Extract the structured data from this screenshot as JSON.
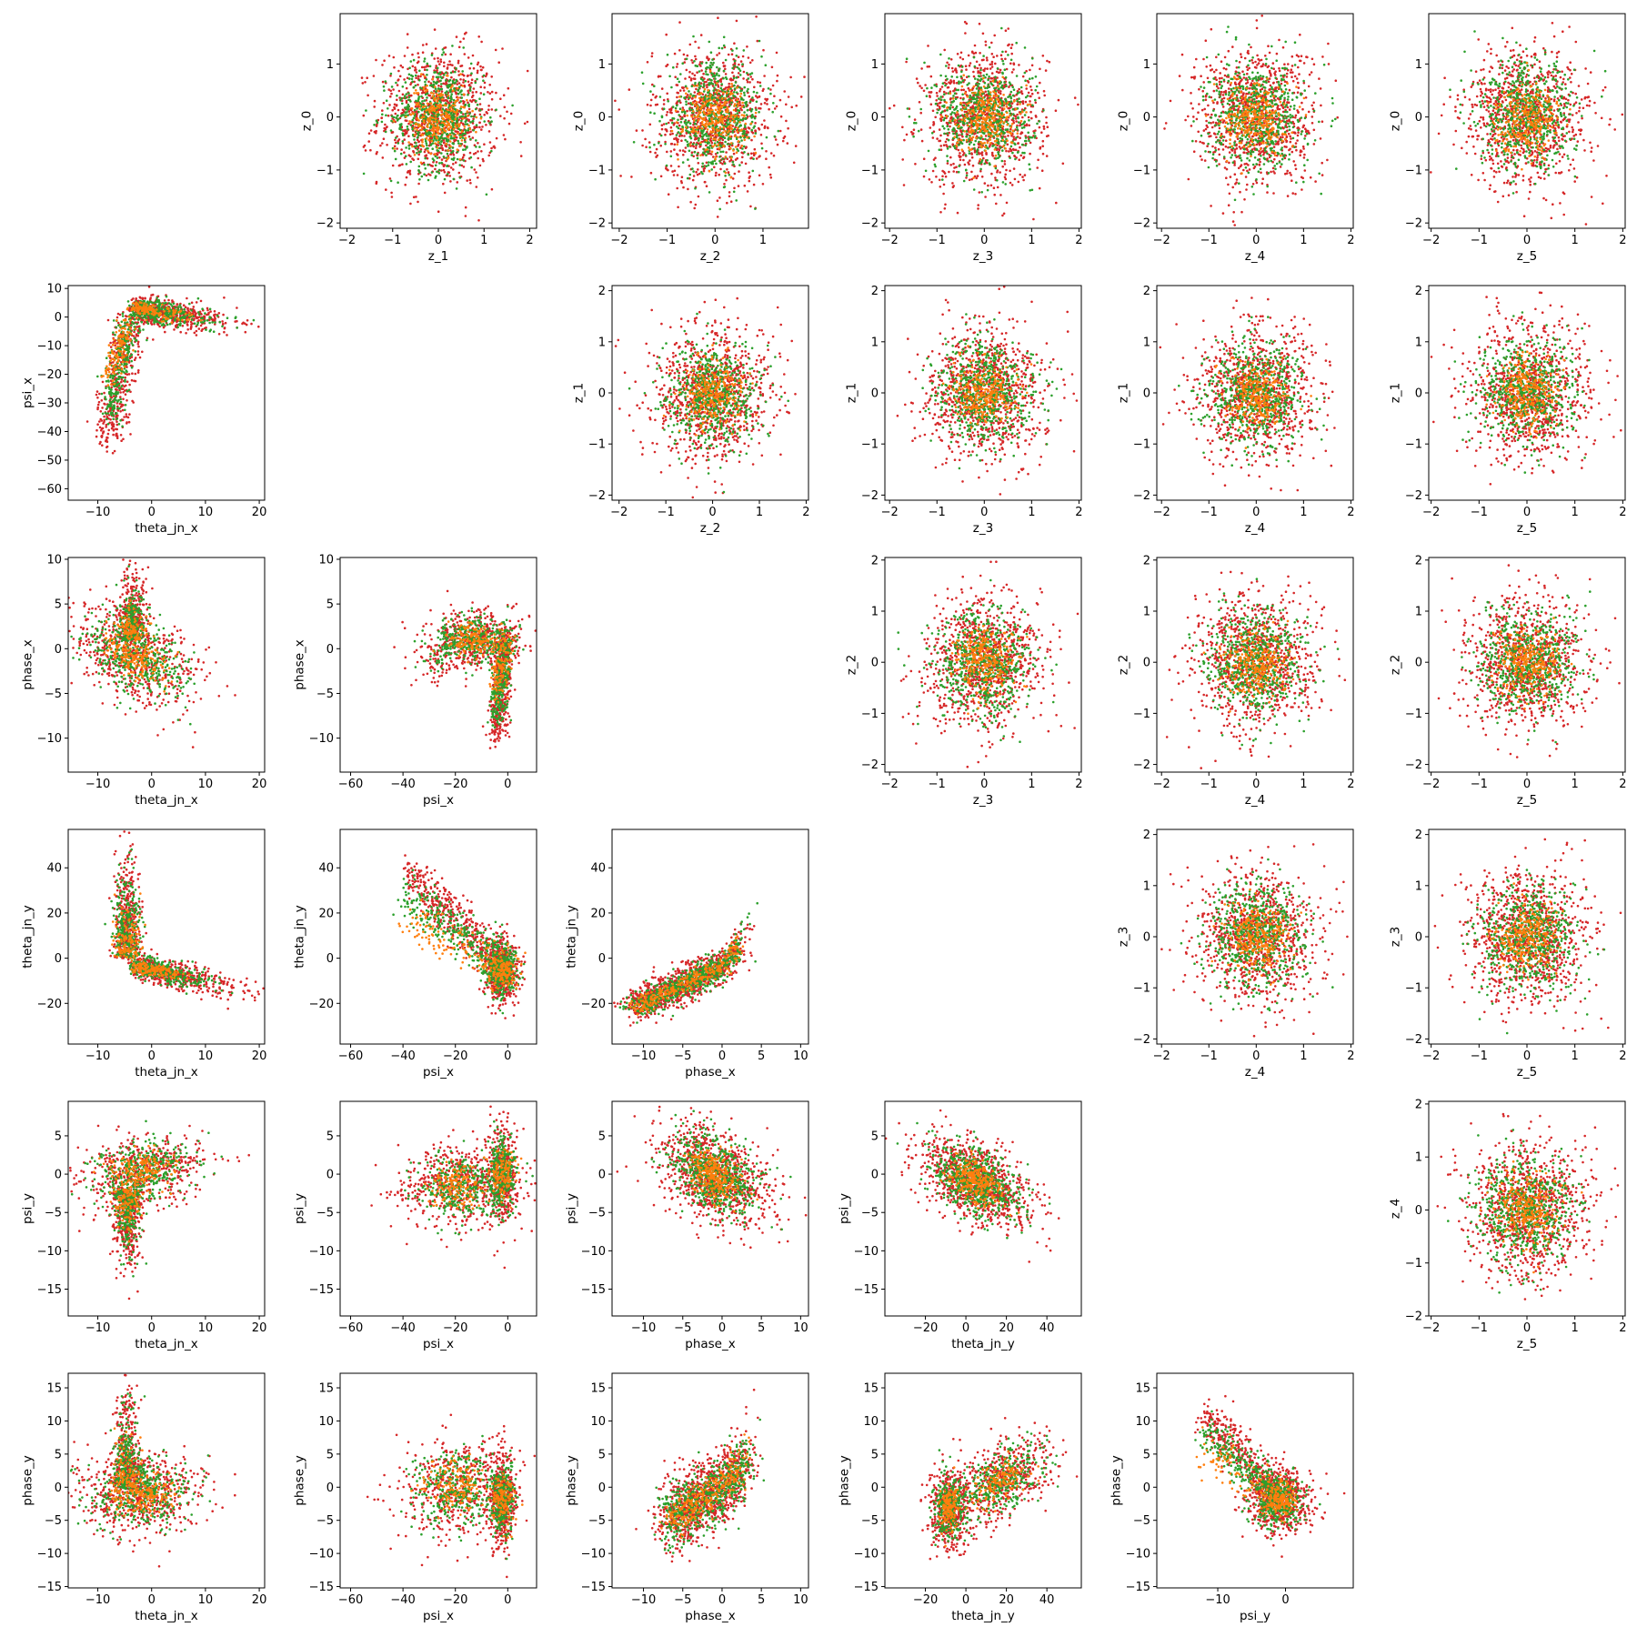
{
  "figure": {
    "type": "scatter-matrix",
    "colors": {
      "red": "#d62728",
      "green": "#2ca02c",
      "orange": "#ff7f0e",
      "axis": "#000000",
      "background": "#ffffff"
    }
  },
  "chart_data": [
    {
      "type": "scatter",
      "panel": "z_1 vs z_0",
      "xlabel": "z_1",
      "ylabel": "z_0",
      "xlim": [
        -2.15,
        2.15
      ],
      "ylim": [
        -2.1,
        1.95
      ],
      "xticks": [
        -2,
        -1,
        0,
        1,
        2
      ],
      "yticks": [
        -2,
        -1,
        0,
        1
      ],
      "pattern": {
        "kind": "gauss",
        "cx": 0,
        "cy": 0,
        "sx": 0.65,
        "sy": 0.65
      }
    },
    {
      "type": "scatter",
      "panel": "z_2 vs z_0",
      "xlabel": "z_2",
      "ylabel": "z_0",
      "xlim": [
        -2.15,
        1.95
      ],
      "ylim": [
        -2.1,
        1.95
      ],
      "xticks": [
        -2,
        -1,
        0,
        1
      ],
      "yticks": [
        -2,
        -1,
        0,
        1
      ],
      "pattern": {
        "kind": "gauss",
        "cx": 0,
        "cy": 0,
        "sx": 0.65,
        "sy": 0.65
      }
    },
    {
      "type": "scatter",
      "panel": "z_3 vs z_0",
      "xlabel": "z_3",
      "ylabel": "z_0",
      "xlim": [
        -2.1,
        2.05
      ],
      "ylim": [
        -2.1,
        1.95
      ],
      "xticks": [
        -2,
        -1,
        0,
        1,
        2
      ],
      "yticks": [
        -2,
        -1,
        0,
        1
      ],
      "pattern": {
        "kind": "gauss",
        "cx": 0,
        "cy": 0,
        "sx": 0.65,
        "sy": 0.65
      }
    },
    {
      "type": "scatter",
      "panel": "z_4 vs z_0",
      "xlabel": "z_4",
      "ylabel": "z_0",
      "xlim": [
        -2.1,
        2.05
      ],
      "ylim": [
        -2.1,
        1.95
      ],
      "xticks": [
        -2,
        -1,
        0,
        1,
        2
      ],
      "yticks": [
        -2,
        -1,
        0,
        1
      ],
      "pattern": {
        "kind": "gauss",
        "cx": 0,
        "cy": 0,
        "sx": 0.65,
        "sy": 0.65
      }
    },
    {
      "type": "scatter",
      "panel": "z_5 vs z_0",
      "xlabel": "z_5",
      "ylabel": "z_0",
      "xlim": [
        -2.05,
        2.05
      ],
      "ylim": [
        -2.1,
        1.95
      ],
      "xticks": [
        -2,
        -1,
        0,
        1,
        2
      ],
      "yticks": [
        -2,
        -1,
        0,
        1
      ],
      "pattern": {
        "kind": "gauss",
        "cx": 0,
        "cy": 0,
        "sx": 0.65,
        "sy": 0.65
      }
    },
    {
      "type": "scatter",
      "panel": "theta_jn_x vs psi_x",
      "xlabel": "theta_jn_x",
      "ylabel": "psi_x",
      "xlim": [
        -15.5,
        21
      ],
      "ylim": [
        -64,
        11
      ],
      "xticks": [
        -10,
        0,
        10,
        20
      ],
      "yticks": [
        -60,
        -50,
        -40,
        -30,
        -20,
        -10,
        0,
        10
      ],
      "pattern": {
        "kind": "thetapsi"
      }
    },
    {
      "type": "scatter",
      "panel": "z_2 vs z_1",
      "xlabel": "z_2",
      "ylabel": "z_1",
      "xlim": [
        -2.15,
        2.05
      ],
      "ylim": [
        -2.1,
        2.1
      ],
      "xticks": [
        -2,
        -1,
        0,
        1,
        2
      ],
      "yticks": [
        -2,
        -1,
        0,
        1,
        2
      ],
      "pattern": {
        "kind": "gauss",
        "cx": 0,
        "cy": 0,
        "sx": 0.65,
        "sy": 0.65
      }
    },
    {
      "type": "scatter",
      "panel": "z_3 vs z_1",
      "xlabel": "z_3",
      "ylabel": "z_1",
      "xlim": [
        -2.1,
        2.05
      ],
      "ylim": [
        -2.1,
        2.1
      ],
      "xticks": [
        -2,
        -1,
        0,
        1,
        2
      ],
      "yticks": [
        -2,
        -1,
        0,
        1,
        2
      ],
      "pattern": {
        "kind": "gauss",
        "cx": 0,
        "cy": 0,
        "sx": 0.65,
        "sy": 0.65
      }
    },
    {
      "type": "scatter",
      "panel": "z_4 vs z_1",
      "xlabel": "z_4",
      "ylabel": "z_1",
      "xlim": [
        -2.1,
        2.05
      ],
      "ylim": [
        -2.1,
        2.1
      ],
      "xticks": [
        -2,
        -1,
        0,
        1,
        2
      ],
      "yticks": [
        -2,
        -1,
        0,
        1,
        2
      ],
      "pattern": {
        "kind": "gauss",
        "cx": 0,
        "cy": 0,
        "sx": 0.65,
        "sy": 0.65
      }
    },
    {
      "type": "scatter",
      "panel": "z_5 vs z_1",
      "xlabel": "z_5",
      "ylabel": "z_1",
      "xlim": [
        -2.05,
        2.05
      ],
      "ylim": [
        -2.1,
        2.1
      ],
      "xticks": [
        -2,
        -1,
        0,
        1,
        2
      ],
      "yticks": [
        -2,
        -1,
        0,
        1,
        2
      ],
      "pattern": {
        "kind": "gauss",
        "cx": 0,
        "cy": 0,
        "sx": 0.65,
        "sy": 0.65
      }
    },
    {
      "type": "scatter",
      "panel": "theta_jn_x vs phase_x",
      "xlabel": "theta_jn_x",
      "ylabel": "phase_x",
      "xlim": [
        -15.5,
        21
      ],
      "ylim": [
        -13.8,
        10.2
      ],
      "xticks": [
        -10,
        0,
        10,
        20
      ],
      "yticks": [
        -10,
        -5,
        0,
        5,
        10
      ],
      "pattern": {
        "kind": "thetaphase"
      }
    },
    {
      "type": "scatter",
      "panel": "psi_x vs phase_x",
      "xlabel": "psi_x",
      "ylabel": "phase_x",
      "xlim": [
        -64,
        11
      ],
      "ylim": [
        -13.8,
        10.2
      ],
      "xticks": [
        -60,
        -40,
        -20,
        0
      ],
      "yticks": [
        -10,
        -5,
        0,
        5,
        10
      ],
      "pattern": {
        "kind": "psiphase"
      }
    },
    {
      "type": "scatter",
      "panel": "z_3 vs z_2",
      "xlabel": "z_3",
      "ylabel": "z_2",
      "xlim": [
        -2.1,
        2.05
      ],
      "ylim": [
        -2.15,
        2.05
      ],
      "xticks": [
        -2,
        -1,
        0,
        1,
        2
      ],
      "yticks": [
        -2,
        -1,
        0,
        1,
        2
      ],
      "pattern": {
        "kind": "gauss",
        "cx": 0,
        "cy": 0,
        "sx": 0.65,
        "sy": 0.65
      }
    },
    {
      "type": "scatter",
      "panel": "z_4 vs z_2",
      "xlabel": "z_4",
      "ylabel": "z_2",
      "xlim": [
        -2.1,
        2.05
      ],
      "ylim": [
        -2.15,
        2.05
      ],
      "xticks": [
        -2,
        -1,
        0,
        1,
        2
      ],
      "yticks": [
        -2,
        -1,
        0,
        1,
        2
      ],
      "pattern": {
        "kind": "gauss",
        "cx": 0,
        "cy": 0,
        "sx": 0.65,
        "sy": 0.65
      }
    },
    {
      "type": "scatter",
      "panel": "z_5 vs z_2",
      "xlabel": "z_5",
      "ylabel": "z_2",
      "xlim": [
        -2.05,
        2.05
      ],
      "ylim": [
        -2.15,
        2.05
      ],
      "xticks": [
        -2,
        -1,
        0,
        1,
        2
      ],
      "yticks": [
        -2,
        -1,
        0,
        1,
        2
      ],
      "pattern": {
        "kind": "gauss",
        "cx": 0,
        "cy": 0,
        "sx": 0.65,
        "sy": 0.65
      }
    },
    {
      "type": "scatter",
      "panel": "theta_jn_x vs theta_jn_y",
      "xlabel": "theta_jn_x",
      "ylabel": "theta_jn_y",
      "xlim": [
        -15.5,
        21
      ],
      "ylim": [
        -38,
        57
      ],
      "xticks": [
        -10,
        0,
        10,
        20
      ],
      "yticks": [
        -20,
        0,
        20,
        40
      ],
      "pattern": {
        "kind": "thetatheta"
      }
    },
    {
      "type": "scatter",
      "panel": "psi_x vs theta_jn_y",
      "xlabel": "psi_x",
      "ylabel": "theta_jn_y",
      "xlim": [
        -64,
        11
      ],
      "ylim": [
        -38,
        57
      ],
      "xticks": [
        -60,
        -40,
        -20,
        0
      ],
      "yticks": [
        -20,
        0,
        20,
        40
      ],
      "pattern": {
        "kind": "psitheta"
      }
    },
    {
      "type": "scatter",
      "panel": "phase_x vs theta_jn_y",
      "xlabel": "phase_x",
      "ylabel": "theta_jn_y",
      "xlim": [
        -14,
        11
      ],
      "ylim": [
        -38,
        57
      ],
      "xticks": [
        -10,
        -5,
        0,
        5,
        10
      ],
      "yticks": [
        -20,
        0,
        20,
        40
      ],
      "pattern": {
        "kind": "phasetheta"
      }
    },
    {
      "type": "scatter",
      "panel": "z_4 vs z_3",
      "xlabel": "z_4",
      "ylabel": "z_3",
      "xlim": [
        -2.1,
        2.05
      ],
      "ylim": [
        -2.1,
        2.1
      ],
      "xticks": [
        -2,
        -1,
        0,
        1,
        2
      ],
      "yticks": [
        -2,
        -1,
        0,
        1,
        2
      ],
      "pattern": {
        "kind": "gauss",
        "cx": 0,
        "cy": 0,
        "sx": 0.65,
        "sy": 0.65
      }
    },
    {
      "type": "scatter",
      "panel": "z_5 vs z_3",
      "xlabel": "z_5",
      "ylabel": "z_3",
      "xlim": [
        -2.05,
        2.05
      ],
      "ylim": [
        -2.1,
        2.1
      ],
      "xticks": [
        -2,
        -1,
        0,
        1,
        2
      ],
      "yticks": [
        -2,
        -1,
        0,
        1,
        2
      ],
      "pattern": {
        "kind": "gauss",
        "cx": 0,
        "cy": 0,
        "sx": 0.65,
        "sy": 0.65
      }
    },
    {
      "type": "scatter",
      "panel": "theta_jn_x vs psi_y",
      "xlabel": "theta_jn_x",
      "ylabel": "psi_y",
      "xlim": [
        -15.5,
        21
      ],
      "ylim": [
        -18.5,
        9.5
      ],
      "xticks": [
        -10,
        0,
        10,
        20
      ],
      "yticks": [
        -15,
        -10,
        -5,
        0,
        5
      ],
      "pattern": {
        "kind": "thetapsiy"
      }
    },
    {
      "type": "scatter",
      "panel": "psi_x vs psi_y",
      "xlabel": "psi_x",
      "ylabel": "psi_y",
      "xlim": [
        -64,
        11
      ],
      "ylim": [
        -18.5,
        9.5
      ],
      "xticks": [
        -60,
        -40,
        -20,
        0
      ],
      "yticks": [
        -15,
        -10,
        -5,
        0,
        5
      ],
      "pattern": {
        "kind": "psipsiy"
      }
    },
    {
      "type": "scatter",
      "panel": "phase_x vs psi_y",
      "xlabel": "phase_x",
      "ylabel": "psi_y",
      "xlim": [
        -14,
        11
      ],
      "ylim": [
        -18.5,
        9.5
      ],
      "xticks": [
        -10,
        -5,
        0,
        5,
        10
      ],
      "yticks": [
        -15,
        -10,
        -5,
        0,
        5
      ],
      "pattern": {
        "kind": "phasepsiy"
      }
    },
    {
      "type": "scatter",
      "panel": "theta_jn_y vs psi_y",
      "xlabel": "theta_jn_y",
      "ylabel": "psi_y",
      "xlim": [
        -40,
        57
      ],
      "ylim": [
        -18.5,
        9.5
      ],
      "xticks": [
        -20,
        0,
        20,
        40
      ],
      "yticks": [
        -15,
        -10,
        -5,
        0,
        5
      ],
      "pattern": {
        "kind": "thetaypsiy"
      }
    },
    {
      "type": "scatter",
      "panel": "z_5 vs z_4",
      "xlabel": "z_5",
      "ylabel": "z_4",
      "xlim": [
        -2.05,
        2.05
      ],
      "ylim": [
        -2.0,
        2.05
      ],
      "xticks": [
        -2,
        -1,
        0,
        1,
        2
      ],
      "yticks": [
        -2,
        -1,
        0,
        1,
        2
      ],
      "pattern": {
        "kind": "gauss",
        "cx": 0,
        "cy": 0,
        "sx": 0.65,
        "sy": 0.65
      }
    },
    {
      "type": "scatter",
      "panel": "theta_jn_x vs phase_y",
      "xlabel": "theta_jn_x",
      "ylabel": "phase_y",
      "xlim": [
        -15.5,
        21
      ],
      "ylim": [
        -15.2,
        17.2
      ],
      "xticks": [
        -10,
        0,
        10,
        20
      ],
      "yticks": [
        -15,
        -10,
        -5,
        0,
        5,
        10,
        15
      ],
      "pattern": {
        "kind": "thetaphasey"
      }
    },
    {
      "type": "scatter",
      "panel": "psi_x vs phase_y",
      "xlabel": "psi_x",
      "ylabel": "phase_y",
      "xlim": [
        -64,
        11
      ],
      "ylim": [
        -15.2,
        17.2
      ],
      "xticks": [
        -60,
        -40,
        -20,
        0
      ],
      "yticks": [
        -15,
        -10,
        -5,
        0,
        5,
        10,
        15
      ],
      "pattern": {
        "kind": "psiphasey"
      }
    },
    {
      "type": "scatter",
      "panel": "phase_x vs phase_y",
      "xlabel": "phase_x",
      "ylabel": "phase_y",
      "xlim": [
        -14,
        11
      ],
      "ylim": [
        -15.2,
        17.2
      ],
      "xticks": [
        -10,
        -5,
        0,
        5,
        10
      ],
      "yticks": [
        -15,
        -10,
        -5,
        0,
        5,
        10,
        15
      ],
      "pattern": {
        "kind": "phasephasey"
      }
    },
    {
      "type": "scatter",
      "panel": "theta_jn_y vs phase_y",
      "xlabel": "theta_jn_y",
      "ylabel": "phase_y",
      "xlim": [
        -40,
        57
      ],
      "ylim": [
        -15.2,
        17.2
      ],
      "xticks": [
        -20,
        0,
        20,
        40
      ],
      "yticks": [
        -15,
        -10,
        -5,
        0,
        5,
        10,
        15
      ],
      "pattern": {
        "kind": "thetayphasey"
      }
    },
    {
      "type": "scatter",
      "panel": "psi_y vs phase_y",
      "xlabel": "psi_y",
      "ylabel": "phase_y",
      "xlim": [
        -19,
        10
      ],
      "ylim": [
        -15.2,
        17.2
      ],
      "xticks": [
        -10,
        0
      ],
      "yticks": [
        -15,
        -10,
        -5,
        0,
        5,
        10,
        15
      ],
      "pattern": {
        "kind": "psiyphasey"
      }
    }
  ]
}
